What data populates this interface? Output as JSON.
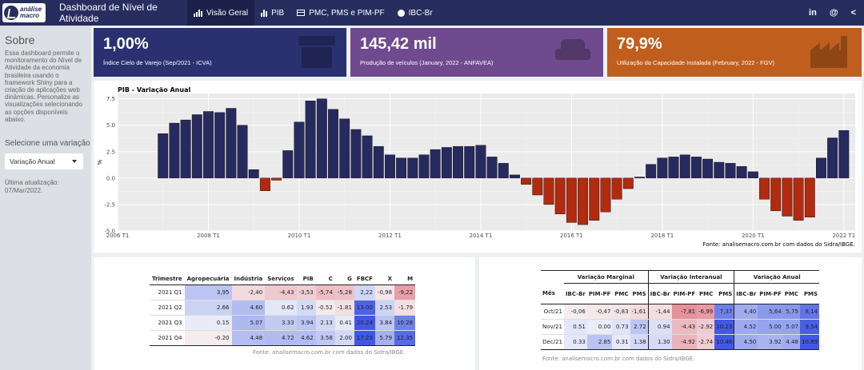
{
  "header": {
    "logo_line1": "análise",
    "logo_line2": "macro",
    "app_title": "Dashboard de Nível de Atividade",
    "tabs": [
      {
        "label": "Visão Geral",
        "icon": "bar-chart-icon",
        "active": true
      },
      {
        "label": "PIB",
        "icon": "bar-chart-icon",
        "active": false
      },
      {
        "label": "PMC, PMS e PIM-PF",
        "icon": "table-icon",
        "active": false
      },
      {
        "label": "IBC-Br",
        "icon": "globe-icon",
        "active": false
      }
    ],
    "right_icons": [
      "in",
      "@",
      "<"
    ]
  },
  "sidebar": {
    "title": "Sobre",
    "description": "Essa dashboard permite o monitoramento do Nível de Atividade da economia brasileira usando o framework Shiny para a criação de aplicações web dinâmicas. Personalize as visualizações selecionando as opções disponíveis abaixo.",
    "select_label": "Selecione uma variação",
    "select_value": "Variação Anual",
    "update_label": "Última atualização:",
    "update_date": "07/Mar/2022."
  },
  "value_boxes": [
    {
      "value": "1,00%",
      "subtitle": "Índice Cielo de Varejo (Sep/2021 - ICVA)",
      "color": "#2b3170",
      "icon": "store-icon"
    },
    {
      "value": "145,42 mil",
      "subtitle": "Produção de veículos (January, 2022 - ANFAVEA)",
      "color": "#6f4a8e",
      "icon": "car-icon"
    },
    {
      "value": "79,9%",
      "subtitle": "Utilização da Capacidade Instalada (February, 2022 - FGV)",
      "color": "#c05e1e",
      "icon": "factory-icon"
    }
  ],
  "chart_data": {
    "type": "bar",
    "title": "PIB - Variação Anual",
    "ylabel": "%",
    "ylim": [
      -5.0,
      8.0
    ],
    "yticks": [
      -5.0,
      -2.5,
      0.0,
      2.5,
      5.0,
      7.5
    ],
    "x_start": "2006 T1",
    "xticks": [
      "2006 T1",
      "2008 T1",
      "2010 T1",
      "2012 T1",
      "2014 T1",
      "2016 T1",
      "2018 T1",
      "2020 T1",
      "2022 T1"
    ],
    "positive_color": "#272a5e",
    "negative_color": "#b22a0f",
    "values": [
      4.2,
      5.2,
      5.5,
      6.0,
      6.3,
      6.2,
      6.6,
      5.0,
      0.8,
      -1.2,
      -0.2,
      2.6,
      5.3,
      7.3,
      7.5,
      6.5,
      5.6,
      4.6,
      4.0,
      3.0,
      2.2,
      1.9,
      1.9,
      2.2,
      2.7,
      2.9,
      3.0,
      3.0,
      3.1,
      2.0,
      1.4,
      0.3,
      -0.6,
      -1.6,
      -2.5,
      -3.4,
      -4.2,
      -4.4,
      -4.0,
      -3.2,
      -2.0,
      -1.0,
      0.1,
      1.3,
      1.9,
      2.0,
      2.2,
      2.0,
      1.8,
      1.5,
      1.4,
      1.1,
      0.6,
      -2.0,
      -3.1,
      -3.6,
      -4.0,
      -3.7,
      1.9,
      3.8,
      4.5
    ],
    "source": "Fonte: analisemacro.com.br com dados do Sidra/IBGE."
  },
  "table1": {
    "headers": [
      "Trimestre",
      "Agropecuária",
      "Indústria",
      "Serviços",
      "PIB",
      "C",
      "G",
      "FBCF",
      "X",
      "M"
    ],
    "rows": [
      [
        "2021 Q1",
        "3,95",
        "-2,40",
        "-4,43",
        "-3,53",
        "-5,74",
        "-5,28",
        "2,22",
        "-0,98",
        "-9,22"
      ],
      [
        "2021 Q2",
        "2.66",
        "4.60",
        "0.62",
        "1.93",
        "-0.52",
        "-1.81",
        "13.00",
        "2.53",
        "-1.79"
      ],
      [
        "2021 Q3",
        "0.15",
        "5.07",
        "3.33",
        "3.94",
        "2.13",
        "0.41",
        "20.24",
        "3.84",
        "10.28"
      ],
      [
        "2021 Q4",
        "-0.20",
        "4.48",
        "4.72",
        "4.62",
        "3.58",
        "2.00",
        "17.23",
        "5.79",
        "12.35"
      ]
    ],
    "source": "Fonte: analisemacro.com.br com dados do Sidra/IBGE."
  },
  "table2": {
    "groups": [
      "Variação Marginal",
      "Variação Interanual",
      "Variação Anual"
    ],
    "headers": [
      "Mês",
      "IBC-Br",
      "PIM-PF",
      "PMC",
      "PMS",
      "IBC-Br",
      "PIM-PF",
      "PMC",
      "PMS",
      "IBC-Br",
      "PIM-PF",
      "PMC",
      "PMS"
    ],
    "rows": [
      [
        "Oct/21",
        "-0,06",
        "-0,47",
        "-0,83",
        "-1,61",
        "-1,44",
        "-7,81",
        "-6,99",
        "7,37",
        "4,40",
        "5,64",
        "5,75",
        "8,14"
      ],
      [
        "Nov/21",
        "0.51",
        "0.00",
        "0.73",
        "2.72",
        "0.94",
        "-4.43",
        "-2.92",
        "10.23",
        "4.52",
        "5.00",
        "5.07",
        "9.54"
      ],
      [
        "Dec/21",
        "0.33",
        "2.85",
        "0.31",
        "1.38",
        "1.30",
        "-4.92",
        "-2.74",
        "10.46",
        "4.50",
        "3.92",
        "4.48",
        "10.89"
      ]
    ],
    "source": "Fonte: analisemacro.com.br com dados do Sidra/IBGE."
  }
}
